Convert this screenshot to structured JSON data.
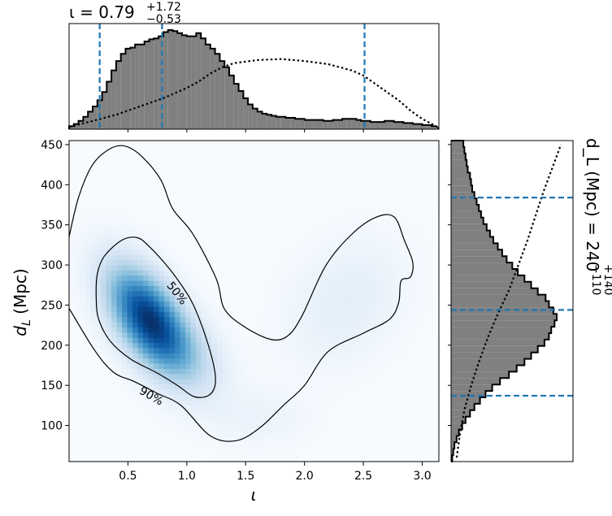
{
  "chart_data": [
    {
      "type": "histogram",
      "panel": "top-marginal",
      "variable": "ι",
      "title": {
        "prefix": "ι = ",
        "median": "0.79",
        "upper": "+1.72",
        "lower": "−0.53"
      },
      "xlim": [
        0.0,
        3.14159
      ],
      "bins": {
        "edges_start": 0.0,
        "bin_width": 0.04,
        "density": [
          0.03,
          0.05,
          0.08,
          0.12,
          0.17,
          0.22,
          0.28,
          0.36,
          0.46,
          0.57,
          0.66,
          0.73,
          0.78,
          0.79,
          0.82,
          0.82,
          0.85,
          0.87,
          0.88,
          0.9,
          0.94,
          0.96,
          0.95,
          0.93,
          0.91,
          0.9,
          0.9,
          0.93,
          0.88,
          0.82,
          0.78,
          0.73,
          0.66,
          0.6,
          0.52,
          0.44,
          0.37,
          0.3,
          0.24,
          0.2,
          0.17,
          0.15,
          0.14,
          0.13,
          0.12,
          0.12,
          0.11,
          0.11,
          0.1,
          0.1,
          0.09,
          0.09,
          0.09,
          0.09,
          0.08,
          0.08,
          0.09,
          0.09,
          0.1,
          0.1,
          0.1,
          0.09,
          0.08,
          0.08,
          0.07,
          0.07,
          0.07,
          0.08,
          0.08,
          0.07,
          0.07,
          0.06,
          0.06,
          0.05,
          0.05,
          0.04,
          0.04,
          0.03
        ]
      },
      "prior_line": {
        "x": [
          0.0,
          0.2,
          0.4,
          0.6,
          0.8,
          1.0,
          1.1,
          1.2,
          1.3,
          1.4,
          1.6,
          1.8,
          2.0,
          2.2,
          2.4,
          2.5,
          2.6,
          2.7,
          2.8,
          2.9,
          3.0,
          3.1
        ],
        "density": [
          0.02,
          0.08,
          0.14,
          0.22,
          0.3,
          0.4,
          0.46,
          0.54,
          0.6,
          0.64,
          0.67,
          0.68,
          0.66,
          0.63,
          0.57,
          0.52,
          0.44,
          0.36,
          0.28,
          0.18,
          0.1,
          0.04
        ]
      },
      "quantile_lines": [
        0.26,
        0.79,
        2.51
      ],
      "fill_color": "#808080",
      "quantile_color": "#1f77b4"
    },
    {
      "type": "heatmap",
      "panel": "joint",
      "xlabel": "ι",
      "ylabel": "d_L (Mpc)",
      "xlim": [
        0.0,
        3.14159
      ],
      "ylim": [
        55,
        455
      ],
      "xticks": [
        "0.5",
        "1.0",
        "1.5",
        "2.0",
        "2.5",
        "3.0"
      ],
      "xtick_values": [
        0.5,
        1.0,
        1.5,
        2.0,
        2.5,
        3.0
      ],
      "yticks": [
        "100",
        "150",
        "200",
        "250",
        "300",
        "350",
        "400",
        "450"
      ],
      "ytick_values": [
        100,
        150,
        200,
        250,
        300,
        350,
        400,
        450
      ],
      "colormap": "Blues",
      "density_components": [
        {
          "weight": 1.0,
          "mean": [
            0.68,
            232
          ],
          "sd": [
            0.24,
            45
          ],
          "rho": -0.55
        },
        {
          "weight": 0.14,
          "mean": [
            1.05,
            185
          ],
          "sd": [
            0.22,
            35
          ],
          "rho": -0.3
        },
        {
          "weight": 0.1,
          "mean": [
            2.35,
            255
          ],
          "sd": [
            0.35,
            55
          ],
          "rho": 0.3
        },
        {
          "weight": 0.06,
          "mean": [
            1.6,
            110
          ],
          "sd": [
            0.3,
            25
          ],
          "rho": 0.0
        }
      ],
      "contours": [
        {
          "label": "50%",
          "level": 0.5,
          "path": [
            [
              0.24,
              289
            ],
            [
              0.3,
              311
            ],
            [
              0.45,
              331
            ],
            [
              0.58,
              334
            ],
            [
              0.68,
              323
            ],
            [
              0.82,
              301
            ],
            [
              0.94,
              278
            ],
            [
              1.05,
              252
            ],
            [
              1.15,
              215
            ],
            [
              1.23,
              174
            ],
            [
              1.24,
              150
            ],
            [
              1.18,
              137
            ],
            [
              1.06,
              136
            ],
            [
              0.92,
              150
            ],
            [
              0.74,
              166
            ],
            [
              0.52,
              183
            ],
            [
              0.35,
              205
            ],
            [
              0.25,
              233
            ],
            [
              0.23,
              262
            ],
            [
              0.24,
              289
            ]
          ]
        },
        {
          "label": "90%",
          "level": 0.9,
          "path": [
            [
              0.0,
              335
            ],
            [
              0.08,
              384
            ],
            [
              0.2,
              425
            ],
            [
              0.35,
              445
            ],
            [
              0.48,
              448
            ],
            [
              0.62,
              435
            ],
            [
              0.78,
              406
            ],
            [
              0.88,
              370
            ],
            [
              1.05,
              339
            ],
            [
              1.25,
              283
            ],
            [
              1.32,
              245
            ],
            [
              1.5,
              222
            ],
            [
              1.72,
              207
            ],
            [
              1.86,
              212
            ],
            [
              1.98,
              237
            ],
            [
              2.18,
              299
            ],
            [
              2.4,
              338
            ],
            [
              2.6,
              359
            ],
            [
              2.76,
              360
            ],
            [
              2.85,
              330
            ],
            [
              2.92,
              303
            ],
            [
              2.9,
              285
            ],
            [
              2.82,
              280
            ],
            [
              2.8,
              253
            ],
            [
              2.72,
              232
            ],
            [
              2.5,
              215
            ],
            [
              2.2,
              192
            ],
            [
              2.0,
              150
            ],
            [
              1.82,
              125
            ],
            [
              1.62,
              97
            ],
            [
              1.42,
              81
            ],
            [
              1.2,
              87
            ],
            [
              0.95,
              125
            ],
            [
              0.75,
              140
            ],
            [
              0.55,
              155
            ],
            [
              0.38,
              166
            ],
            [
              0.22,
              193
            ],
            [
              0.0,
              246
            ]
          ]
        }
      ],
      "contour_labels": [
        {
          "text": "50%",
          "x": 0.92,
          "y": 265,
          "angle_deg": 52
        },
        {
          "text": "90%",
          "x": 0.7,
          "y": 137,
          "angle_deg": 30
        }
      ]
    },
    {
      "type": "histogram",
      "panel": "right-marginal",
      "variable": "d_L",
      "orientation": "horizontal",
      "title": {
        "prefix": "d_L (Mpc) = 240",
        "upper": "+140",
        "lower": "−110"
      },
      "ylim": [
        55,
        455
      ],
      "bins": {
        "edges_start": 55,
        "bin_width": 8,
        "density": [
          0.01,
          0.02,
          0.03,
          0.05,
          0.07,
          0.1,
          0.13,
          0.17,
          0.21,
          0.26,
          0.31,
          0.37,
          0.44,
          0.52,
          0.59,
          0.66,
          0.72,
          0.78,
          0.84,
          0.88,
          0.9,
          0.93,
          0.95,
          0.92,
          0.88,
          0.85,
          0.78,
          0.72,
          0.66,
          0.6,
          0.55,
          0.5,
          0.46,
          0.42,
          0.38,
          0.35,
          0.32,
          0.29,
          0.27,
          0.25,
          0.23,
          0.21,
          0.19,
          0.18,
          0.17,
          0.15,
          0.14,
          0.13,
          0.12,
          0.11
        ]
      },
      "prior_line": {
        "y": [
          60,
          90,
          120,
          150,
          180,
          210,
          240,
          270,
          300,
          330,
          360,
          390,
          420,
          450
        ],
        "density": [
          0.05,
          0.08,
          0.12,
          0.18,
          0.25,
          0.33,
          0.42,
          0.52,
          0.6,
          0.68,
          0.75,
          0.82,
          0.9,
          0.98
        ]
      },
      "quantile_lines": [
        137,
        244,
        384
      ],
      "fill_color": "#808080",
      "quantile_color": "#1f77b4"
    }
  ]
}
